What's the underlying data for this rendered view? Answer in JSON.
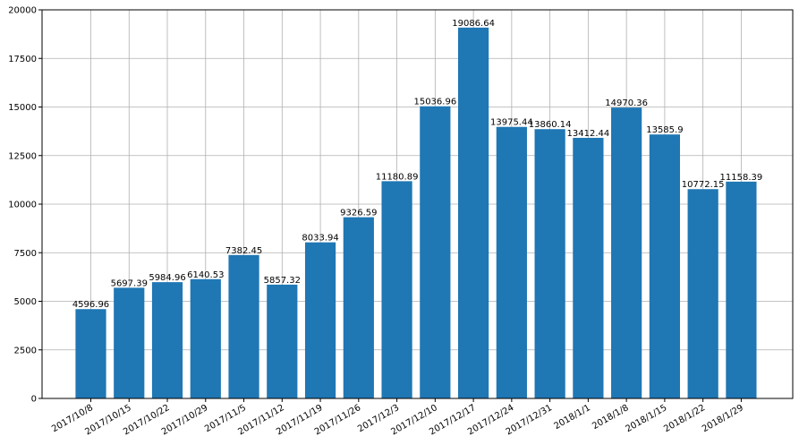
{
  "chart_data": {
    "type": "bar",
    "title": "",
    "xlabel": "",
    "ylabel": "",
    "categories": [
      "2017/10/8",
      "2017/10/15",
      "2017/10/22",
      "2017/10/29",
      "2017/11/5",
      "2017/11/12",
      "2017/11/19",
      "2017/11/26",
      "2017/12/3",
      "2017/12/10",
      "2017/12/17",
      "2017/12/24",
      "2017/12/31",
      "2018/1/1",
      "2018/1/8",
      "2018/1/15",
      "2018/1/22",
      "2018/1/29"
    ],
    "values": [
      4596.96,
      5697.39,
      5984.96,
      6140.53,
      7382.45,
      5857.32,
      8033.94,
      9326.59,
      11180.89,
      15036.96,
      19086.64,
      13975.44,
      13860.14,
      13412.44,
      14970.36,
      13585.9,
      10772.15,
      11158.39
    ],
    "value_labels": [
      "4596.96",
      "5697.39",
      "5984.96",
      "6140.53",
      "7382.45",
      "5857.32",
      "8033.94",
      "9326.59",
      "11180.89",
      "15036.96",
      "19086.64",
      "13975.44",
      "13860.14",
      "13412.44",
      "14970.36",
      "13585.9",
      "10772.15",
      "11158.39"
    ],
    "yticks": [
      0,
      2500,
      5000,
      7500,
      10000,
      12500,
      15000,
      17500,
      20000
    ],
    "ylim": [
      0,
      20000
    ],
    "grid": true,
    "colors": {
      "bar": "#1f77b4",
      "grid": "#b0b0b0",
      "axis": "#000000"
    }
  }
}
